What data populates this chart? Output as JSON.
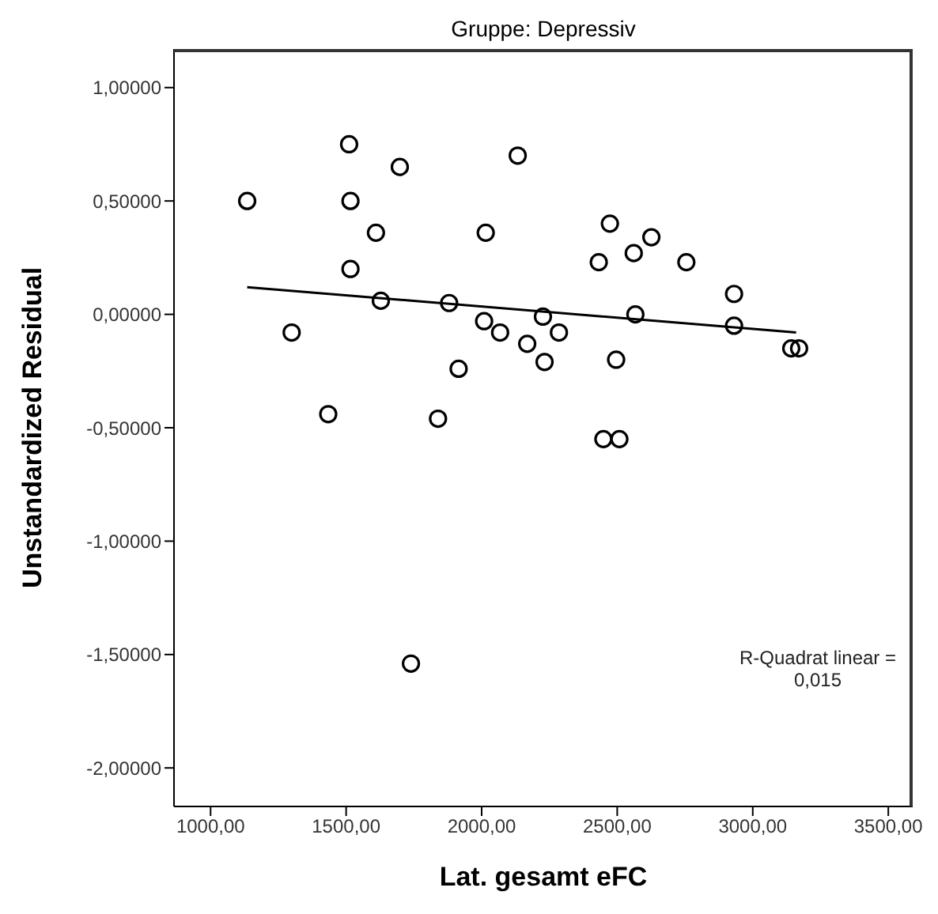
{
  "chart_data": {
    "type": "scatter",
    "title": "Gruppe: Depressiv",
    "xlabel": "Lat. gesamt eFC",
    "ylabel": "Unstandardized Residual",
    "xlim": [
      865,
      3590
    ],
    "ylim": [
      -2.17,
      1.17
    ],
    "xticks": [
      {
        "value": 1000,
        "label": "1000,00"
      },
      {
        "value": 1500,
        "label": "1500,00"
      },
      {
        "value": 2000,
        "label": "2000,00"
      },
      {
        "value": 2500,
        "label": "2500,00"
      },
      {
        "value": 3000,
        "label": "3000,00"
      },
      {
        "value": 3500,
        "label": "3500,00"
      }
    ],
    "yticks": [
      {
        "value": -2,
        "label": "-2,00000"
      },
      {
        "value": -1.5,
        "label": "-1,50000"
      },
      {
        "value": -1,
        "label": "-1,00000"
      },
      {
        "value": -0.5,
        "label": "-0,50000"
      },
      {
        "value": 0,
        "label": "0,00000"
      },
      {
        "value": 0.5,
        "label": "0,50000"
      },
      {
        "value": 1,
        "label": "1,00000"
      }
    ],
    "series": [
      {
        "marker": "circle",
        "color": "#000000",
        "x": [
          1135,
          1299,
          1434,
          1511,
          1516,
          1516,
          1610,
          1628,
          1698,
          1739,
          1839,
          1880,
          1915,
          2015,
          2009,
          2068,
          2133,
          2168,
          2226,
          2232,
          2285,
          2432,
          2449,
          2473,
          2508,
          2496,
          2561,
          2567,
          2626,
          2755,
          2931,
          2931,
          3142,
          3171
        ],
        "values": [
          0.5,
          -0.08,
          -0.44,
          0.75,
          0.5,
          0.2,
          0.36,
          0.06,
          0.65,
          -1.54,
          -0.46,
          0.05,
          -0.24,
          0.36,
          -0.03,
          -0.08,
          0.7,
          -0.13,
          -0.01,
          -0.21,
          -0.08,
          0.23,
          -0.55,
          0.4,
          -0.55,
          -0.2,
          0.27,
          0,
          0.34,
          0.23,
          0.09,
          -0.05,
          -0.15,
          -0.15
        ]
      },
      {
        "type": "line",
        "marker": "none",
        "color": "#000000",
        "x": [
          1135,
          3160
        ],
        "values": [
          0.12,
          -0.08
        ]
      }
    ],
    "annotations": [
      "R-Quadrat linear = 0,015"
    ]
  }
}
